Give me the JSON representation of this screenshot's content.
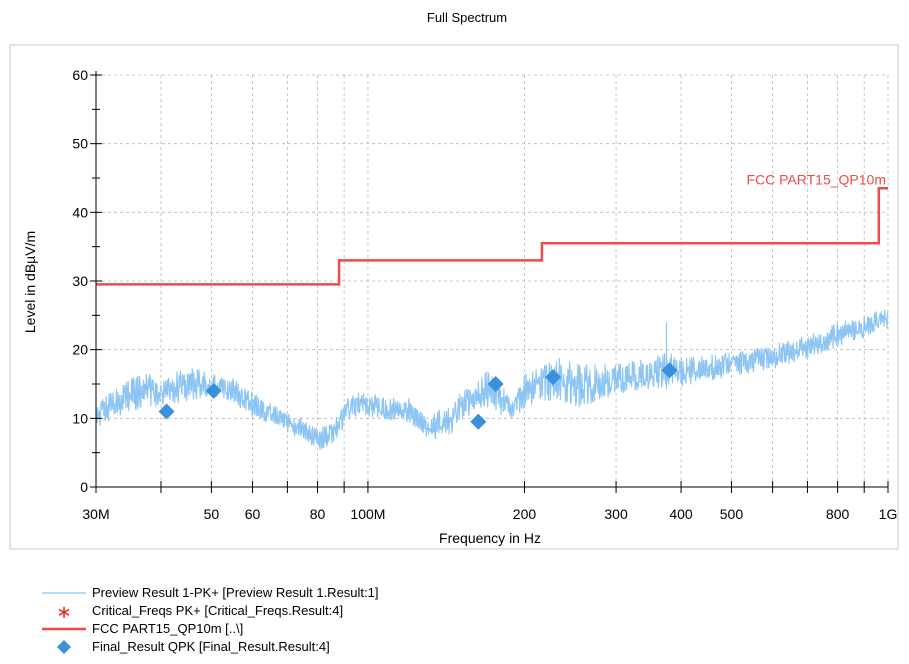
{
  "chart_data": {
    "type": "line",
    "title": "Full Spectrum",
    "xlabel": "Frequency in Hz",
    "ylabel": "Level in dBµV/m",
    "x_scale": "log",
    "xlim": [
      30000000,
      1000000000
    ],
    "ylim": [
      0,
      60
    ],
    "x_ticks": [
      {
        "value": 30000000,
        "label": "30M"
      },
      {
        "value": 50000000,
        "label": "50"
      },
      {
        "value": 60000000,
        "label": "60"
      },
      {
        "value": 80000000,
        "label": "80"
      },
      {
        "value": 100000000,
        "label": "100M"
      },
      {
        "value": 200000000,
        "label": "200"
      },
      {
        "value": 300000000,
        "label": "300"
      },
      {
        "value": 400000000,
        "label": "400"
      },
      {
        "value": 500000000,
        "label": "500"
      },
      {
        "value": 800000000,
        "label": "800"
      },
      {
        "value": 1000000000,
        "label": "1G"
      }
    ],
    "y_ticks": [
      0,
      10,
      20,
      30,
      40,
      50,
      60
    ],
    "grid": true,
    "limit_line": {
      "name": "FCC PART15_QP10m",
      "color": "#ef4b4b",
      "points": [
        [
          30000000,
          29.5
        ],
        [
          88000000,
          29.5
        ],
        [
          88000000,
          33.0
        ],
        [
          216000000,
          33.0
        ],
        [
          216000000,
          35.5
        ],
        [
          960000000,
          35.5
        ],
        [
          960000000,
          43.5
        ],
        [
          1000000000,
          43.5
        ]
      ]
    },
    "preview_series": {
      "name": "Preview Result 1-PK+",
      "color": "#8cc4f4",
      "envelope_upper": [
        [
          30000000,
          12.5
        ],
        [
          33000000,
          15.0
        ],
        [
          36000000,
          17.0
        ],
        [
          40000000,
          16.0
        ],
        [
          45000000,
          17.5
        ],
        [
          50000000,
          17.0
        ],
        [
          55000000,
          16.0
        ],
        [
          60000000,
          14.0
        ],
        [
          65000000,
          12.5
        ],
        [
          70000000,
          11.0
        ],
        [
          75000000,
          10.5
        ],
        [
          80000000,
          9.0
        ],
        [
          85000000,
          9.5
        ],
        [
          90000000,
          12.5
        ],
        [
          95000000,
          14.5
        ],
        [
          100000000,
          14.0
        ],
        [
          110000000,
          13.0
        ],
        [
          120000000,
          13.0
        ],
        [
          130000000,
          10.0
        ],
        [
          140000000,
          12.0
        ],
        [
          150000000,
          14.0
        ],
        [
          160000000,
          15.0
        ],
        [
          170000000,
          17.5
        ],
        [
          180000000,
          15.5
        ],
        [
          190000000,
          12.5
        ],
        [
          200000000,
          17.0
        ],
        [
          215000000,
          18.0
        ],
        [
          230000000,
          19.5
        ],
        [
          250000000,
          18.0
        ],
        [
          300000000,
          18.0
        ],
        [
          350000000,
          19.0
        ],
        [
          380000000,
          20.0
        ],
        [
          400000000,
          19.0
        ],
        [
          500000000,
          20.0
        ],
        [
          600000000,
          21.0
        ],
        [
          700000000,
          22.0
        ],
        [
          800000000,
          24.0
        ],
        [
          900000000,
          25.0
        ],
        [
          1000000000,
          26.5
        ]
      ],
      "envelope_lower": [
        [
          30000000,
          8.5
        ],
        [
          33000000,
          10.0
        ],
        [
          36000000,
          11.0
        ],
        [
          40000000,
          11.5
        ],
        [
          45000000,
          12.0
        ],
        [
          50000000,
          13.0
        ],
        [
          55000000,
          12.0
        ],
        [
          60000000,
          10.0
        ],
        [
          65000000,
          9.0
        ],
        [
          70000000,
          8.0
        ],
        [
          75000000,
          6.5
        ],
        [
          80000000,
          5.0
        ],
        [
          85000000,
          6.0
        ],
        [
          90000000,
          8.0
        ],
        [
          95000000,
          10.0
        ],
        [
          100000000,
          10.0
        ],
        [
          110000000,
          9.5
        ],
        [
          120000000,
          9.0
        ],
        [
          130000000,
          7.0
        ],
        [
          140000000,
          6.0
        ],
        [
          150000000,
          9.0
        ],
        [
          160000000,
          11.0
        ],
        [
          170000000,
          11.5
        ],
        [
          180000000,
          10.5
        ],
        [
          190000000,
          9.5
        ],
        [
          200000000,
          11.5
        ],
        [
          215000000,
          12.0
        ],
        [
          230000000,
          12.5
        ],
        [
          250000000,
          11.0
        ],
        [
          300000000,
          13.0
        ],
        [
          350000000,
          14.0
        ],
        [
          400000000,
          14.5
        ],
        [
          500000000,
          16.0
        ],
        [
          600000000,
          17.0
        ],
        [
          700000000,
          18.5
        ],
        [
          800000000,
          20.0
        ],
        [
          900000000,
          21.5
        ],
        [
          1000000000,
          23.0
        ]
      ],
      "spikes": [
        [
          375000000,
          24.0
        ]
      ]
    },
    "final_result": {
      "name": "Final_Result QPK",
      "color": "#3a8fde",
      "points": [
        [
          41000000,
          11.0
        ],
        [
          50500000,
          14.0
        ],
        [
          163000000,
          9.5
        ],
        [
          176000000,
          15.0
        ],
        [
          227000000,
          16.0
        ],
        [
          380000000,
          17.0
        ]
      ]
    },
    "legend": {
      "placement": "bottom",
      "entries": [
        {
          "marker": "line",
          "color": "#8cc4f4",
          "label": "Preview  Result 1-PK+   [Preview  Result 1.Result:1]"
        },
        {
          "marker": "asterisk",
          "color": "#e8291c",
          "label": "Critical_Freqs PK+   [Critical_Freqs.Result:4]"
        },
        {
          "marker": "line",
          "color": "#ef4b4b",
          "label": "FCC PART15_QP10m   [..\\]"
        },
        {
          "marker": "diamond",
          "color": "#3a8fde",
          "label": "Final_Result QPK   [Final_Result.Result:4]"
        }
      ]
    }
  }
}
